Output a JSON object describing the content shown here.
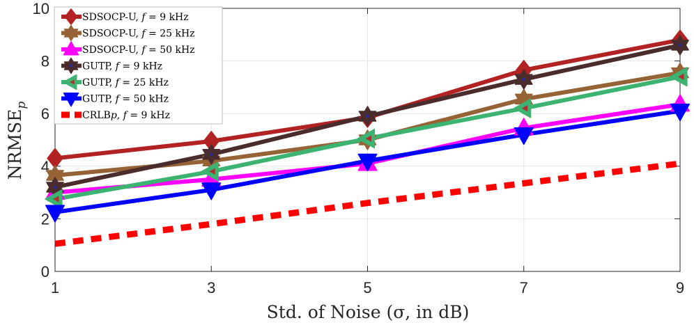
{
  "chart_data": {
    "type": "line",
    "title": "",
    "xlabel": "Std. of Noise (σ, in dB)",
    "ylabel": "NRMSE_p",
    "x": [
      1,
      3,
      5,
      7,
      9
    ],
    "x_ticks": [
      "1",
      "3",
      "5",
      "7",
      "9"
    ],
    "y_ticks": [
      "0",
      "2",
      "4",
      "6",
      "8",
      "10"
    ],
    "xlim": [
      1,
      9
    ],
    "ylim": [
      0,
      10
    ],
    "grid": true,
    "legend_position": "top-left",
    "series": [
      {
        "name": "SDSOCP-U, f = 9 kHz",
        "legend_label": "SDSOCP-U, 𝑓 = 9 kHz",
        "values": [
          4.3,
          4.95,
          5.85,
          7.65,
          8.8
        ],
        "color": "#b22222",
        "marker": "diamond",
        "dashed": false
      },
      {
        "name": "SDSOCP-U, f = 25 kHz",
        "legend_label": "SDSOCP-U, 𝑓 = 25 kHz",
        "values": [
          3.65,
          4.2,
          5.0,
          6.55,
          7.55
        ],
        "color": "#956335",
        "marker": "hexagram",
        "dashed": false
      },
      {
        "name": "SDSOCP-U, f = 50 kHz",
        "legend_label": "SDSOCP-U, 𝑓 = 50 kHz",
        "values": [
          3.0,
          3.5,
          4.1,
          5.45,
          6.35
        ],
        "color": "#ff00ff",
        "marker": "triangle-up",
        "dashed": false
      },
      {
        "name": "GUTP, f = 9 kHz",
        "legend_label": "GUTP, 𝑓 = 9 kHz",
        "values": [
          3.2,
          4.45,
          5.9,
          7.3,
          8.6
        ],
        "color": "#4a2c2c",
        "marker": "hexagram",
        "dashed": false
      },
      {
        "name": "GUTP, f = 25 kHz",
        "legend_label": "GUTP, 𝑓 = 25 kHz",
        "values": [
          2.75,
          3.8,
          5.05,
          6.2,
          7.4
        ],
        "color": "#3cb371",
        "marker": "triangle-left",
        "dashed": false
      },
      {
        "name": "GUTP, f = 50 kHz",
        "legend_label": "GUTP, 𝑓 = 50 kHz",
        "values": [
          2.25,
          3.1,
          4.2,
          5.2,
          6.1
        ],
        "color": "#0000ff",
        "marker": "triangle-down",
        "dashed": false
      },
      {
        "name": "CRLB_p, f = 9 kHz",
        "legend_label": "CRLB𝑝, 𝑓 = 9 kHz",
        "values": [
          1.05,
          1.8,
          2.6,
          3.35,
          4.1
        ],
        "color": "#ff0000",
        "marker": "none",
        "dashed": true
      }
    ]
  }
}
